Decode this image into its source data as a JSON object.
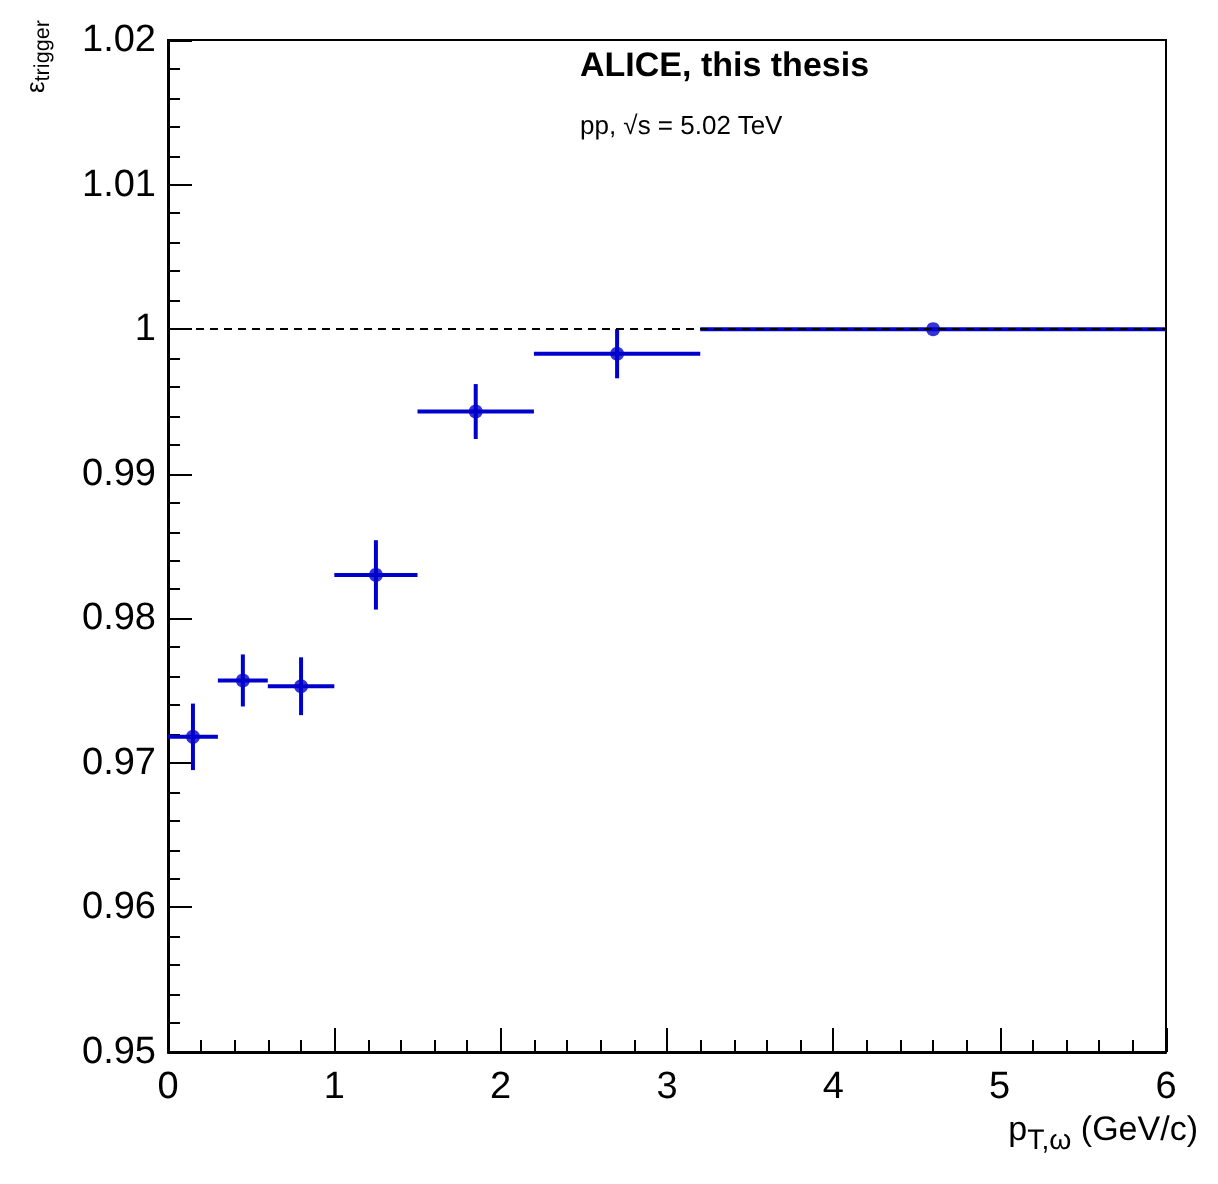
{
  "chart_data": {
    "type": "scatter",
    "annotations": [
      "ALICE, this thesis",
      "pp, √s = 5.02 TeV"
    ],
    "xlabel": "p$_{T,ω}$ (GeV/c)",
    "ylabel": "ε$_{trigger}$",
    "x": [
      0.15,
      0.45,
      0.8,
      1.25,
      1.85,
      2.7,
      4.6
    ],
    "series": [
      {
        "color": "#0000cc",
        "values": [
          0.9718,
          0.9757,
          0.9753,
          0.983,
          0.9943,
          0.9983,
          1.0
        ],
        "errors": [
          0.0023,
          0.0018,
          0.002,
          0.0024,
          0.0019,
          0.0017,
          null
        ],
        "xerrors": [
          0.15,
          0.15,
          0.2,
          0.25,
          0.35,
          0.5,
          1.4
        ]
      }
    ],
    "xlim": [
      0,
      6
    ],
    "xticks": [
      0,
      1,
      2,
      3,
      4,
      5,
      6
    ],
    "ylim": [
      0.95,
      1.02
    ],
    "yticks": [
      0.95,
      0.96,
      0.97,
      0.98,
      0.99,
      1,
      1.01,
      1.02
    ],
    "ref_lines": [
      {
        "axis": "y",
        "value": 1,
        "line_style": "dashed",
        "color": "#000000"
      }
    ],
    "grid": false,
    "marker": "circle"
  }
}
